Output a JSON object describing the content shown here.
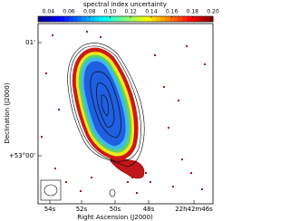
{
  "chart_data": {
    "type": "image",
    "colorbar_label": "spectral index uncertainty",
    "colormap": "jet",
    "clim": [
      0.03,
      0.2
    ],
    "cticks": [
      {
        "value": 0.04,
        "label": "0.04"
      },
      {
        "value": 0.06,
        "label": "0.06"
      },
      {
        "value": 0.08,
        "label": "0.08"
      },
      {
        "value": 0.1,
        "label": "0.10"
      },
      {
        "value": 0.12,
        "label": "0.12"
      },
      {
        "value": 0.14,
        "label": "0.14"
      },
      {
        "value": 0.16,
        "label": "0.16"
      },
      {
        "value": 0.18,
        "label": "0.18"
      },
      {
        "value": 0.2,
        "label": "0.20"
      }
    ],
    "x_label": "Right Ascension (J2000)",
    "y_label": "Declination (J2000)",
    "xtick_labels": [
      "54s",
      "52s",
      "50s",
      "48s",
      "22h42m46s"
    ],
    "ytick_labels": [
      "+53°00'",
      "01'"
    ]
  }
}
